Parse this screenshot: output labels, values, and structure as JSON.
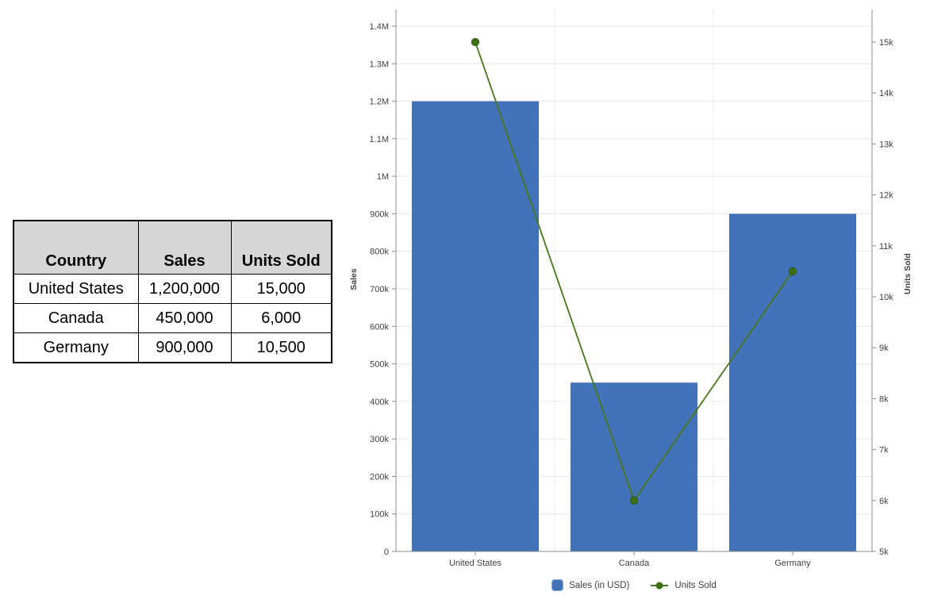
{
  "table": {
    "headers": [
      "Country",
      "Sales",
      "Units Sold"
    ],
    "rows": [
      [
        "United States",
        "1,200,000",
        "15,000"
      ],
      [
        "Canada",
        "450,000",
        "6,000"
      ],
      [
        "Germany",
        "900,000",
        "10,500"
      ]
    ]
  },
  "chart_data": {
    "type": "combo",
    "categories": [
      "United States",
      "Canada",
      "Germany"
    ],
    "series": [
      {
        "name": "Sales (in USD)",
        "type": "bar",
        "axis": "left",
        "color": "#4273b8",
        "swatch_border": "#8aa9d8",
        "values": [
          1200000,
          450000,
          900000
        ]
      },
      {
        "name": "Units Sold",
        "type": "line",
        "axis": "right",
        "color": "#47761c",
        "dot_color": "#3d6e14",
        "values": [
          15000,
          6000,
          10500
        ]
      }
    ],
    "left_axis": {
      "title": "Sales",
      "min": 0,
      "max": 1400000,
      "step": 100000,
      "tick_labels": [
        "0",
        "100k",
        "200k",
        "300k",
        "400k",
        "500k",
        "600k",
        "700k",
        "800k",
        "900k",
        "1M",
        "1.1M",
        "1.2M",
        "1.3M",
        "1.4M"
      ]
    },
    "right_axis": {
      "title": "Units Sold",
      "min": 5000,
      "max": 15000,
      "step": 1000,
      "tick_labels": [
        "5k",
        "6k",
        "7k",
        "8k",
        "9k",
        "10k",
        "11k",
        "12k",
        "13k",
        "14k",
        "15k"
      ]
    },
    "legend": [
      "Sales (in USD)",
      "Units Sold"
    ],
    "grid": true,
    "legend_position": "bottom",
    "colors": {
      "axis_line": "#8c8c8c",
      "h_gridline": "#e6e6e6",
      "v_gridline": "#ededed",
      "tick_label": "#404040",
      "axis_title": "#1a1a1a"
    }
  }
}
